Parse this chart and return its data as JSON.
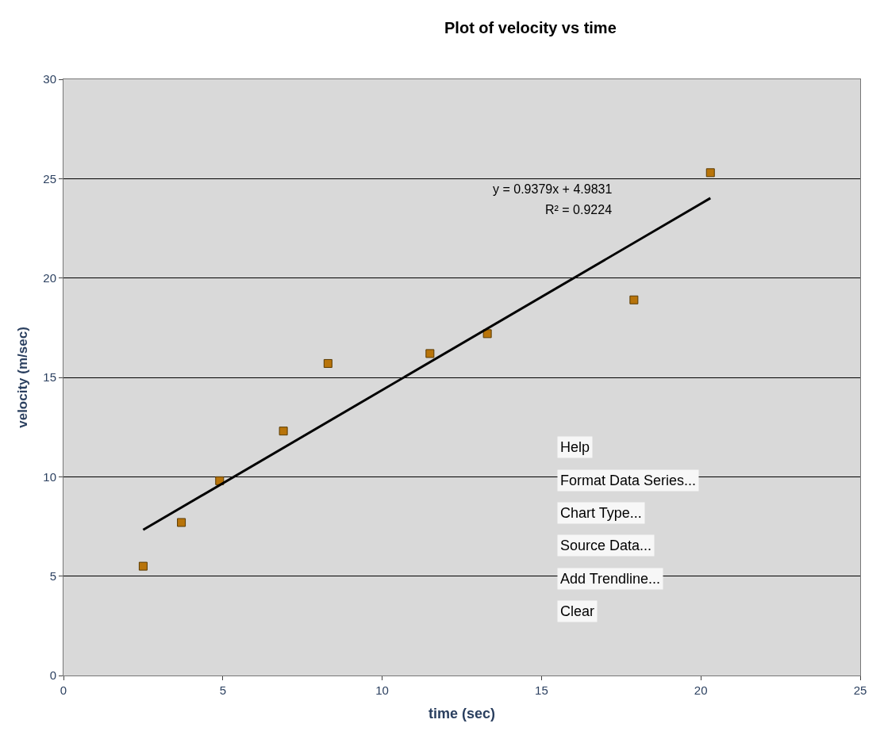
{
  "chart_data": {
    "type": "scatter",
    "title": "Plot of velocity vs time",
    "xlabel": "time (sec)",
    "ylabel": "velocity (m/sec)",
    "xlim": [
      0,
      25
    ],
    "xticks": [
      0,
      5,
      10,
      15,
      20,
      25
    ],
    "ylim": [
      0,
      30
    ],
    "yticks": [
      0,
      5,
      10,
      15,
      20,
      25,
      30
    ],
    "grid": "y",
    "series": [
      {
        "marker": "square",
        "color": "#b8740a",
        "x": [
          2.5,
          3.7,
          4.9,
          6.9,
          8.3,
          11.5,
          13.3,
          17.9,
          20.3
        ],
        "values": [
          5.5,
          7.7,
          9.8,
          12.3,
          15.7,
          16.2,
          17.2,
          18.9,
          25.3
        ]
      },
      {
        "type": "line",
        "marker": "none",
        "color": "#000000",
        "x": [
          2.5,
          20.3
        ],
        "values": [
          7.33,
          24.02
        ]
      }
    ],
    "annotations": [
      "y = 0.9379x + 4.9831",
      "R² = 0.9224",
      "Help",
      "Format Data Series...",
      "Chart Type...",
      "Source Data...",
      "Add Trendline...",
      "Clear"
    ]
  }
}
